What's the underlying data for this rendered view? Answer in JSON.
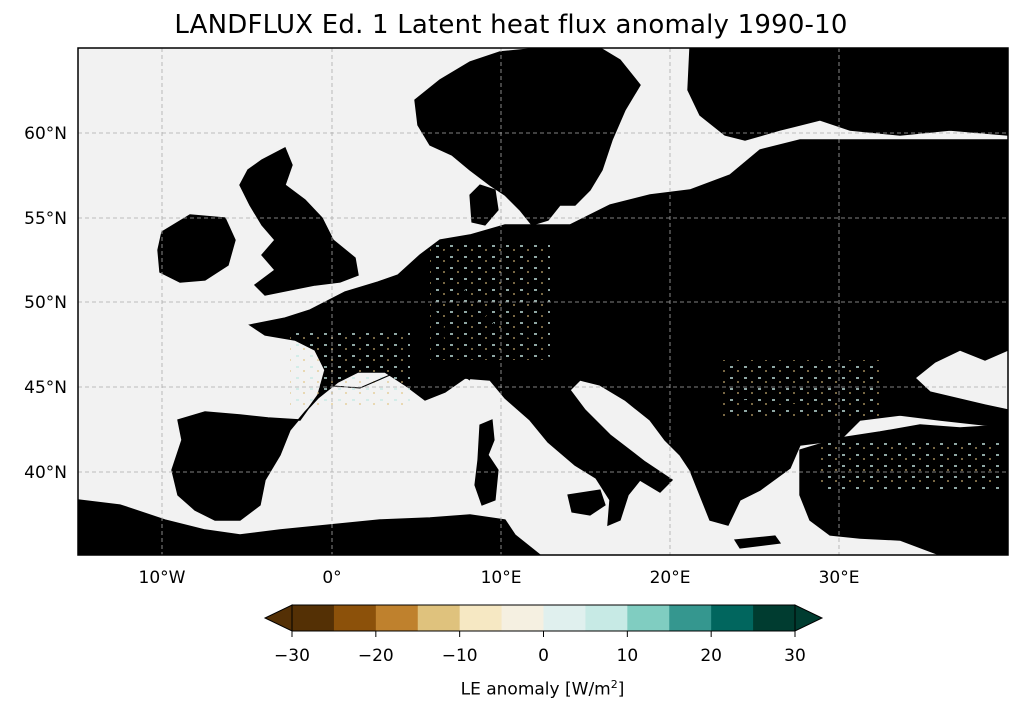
{
  "title": "LANDFLUX Ed. 1 Latent heat flux anomaly 1990-10",
  "map": {
    "lon_range": [
      -15,
      40
    ],
    "lat_range": [
      35,
      65
    ],
    "x_ticks": [
      "10°W",
      "0°",
      "10°E",
      "20°E",
      "30°E"
    ],
    "y_ticks": [
      "60°N",
      "55°N",
      "50°N",
      "45°N",
      "40°N"
    ],
    "gridlines": true,
    "ocean_color": "#f2f2f2",
    "coastline_color": "#000000"
  },
  "colorbar": {
    "label_text": "LE anomaly [W/m",
    "label_sup": "2",
    "label_end": "]",
    "ticks": [
      "−30",
      "−20",
      "−10",
      "0",
      "10",
      "20",
      "30"
    ],
    "range": [
      -30,
      30
    ],
    "extend": "both",
    "colors": [
      "#543005",
      "#8c510a",
      "#bf812d",
      "#dfc27d",
      "#f6e8c3",
      "#f5f0e1",
      "#e0f0ee",
      "#c7eae5",
      "#80cdc1",
      "#35978f",
      "#01665e",
      "#003c30"
    ]
  }
}
